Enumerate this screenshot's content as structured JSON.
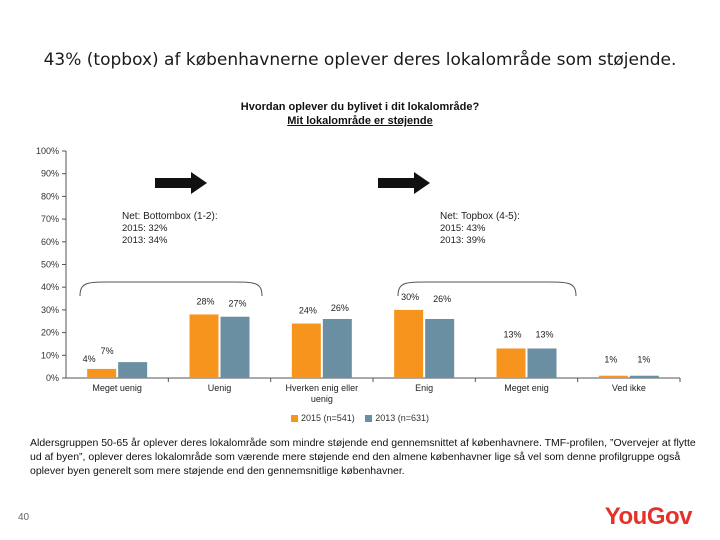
{
  "slide": {
    "headline": "43% (topbox) af københavnerne oplever deres lokalområde som støjende.",
    "notes": "Aldersgruppen 50-65 år oplever deres lokalområde som mindre støjende end gennemsnittet af københavnere. TMF-profilen, ”Overvejer at flytte ud af byen”, oplever deres lokalområde som værende mere støjende end den almene københavner lige så vel som denne profilgruppe også oplever byen generelt som mere støjende end den gennemsnitlige københavner.",
    "page_number": "40",
    "logo": "YouGov"
  },
  "colors": {
    "series_2015": "#F7941D",
    "series_2013": "#6A8FA3",
    "logo": "#E4322B"
  },
  "icons": [
    "arrow-right-icon",
    "arrow-right-icon"
  ],
  "chart_data": {
    "type": "bar",
    "title": "Hvordan oplever du bylivet i dit lokalområde?",
    "subtitle": "Mit lokalområde er støjende",
    "categories": [
      "Meget uenig",
      "Uenig",
      "Hverken enig eller uenig",
      "Enig",
      "Meget enig",
      "Ved ikke"
    ],
    "series": [
      {
        "name": "2015 (n=541)",
        "values": [
          4,
          28,
          24,
          30,
          13,
          1
        ],
        "labels": [
          "4%",
          "28%",
          "24%",
          "30%",
          "13%",
          "1%"
        ]
      },
      {
        "name": "2013 (n=631)",
        "values": [
          7,
          27,
          26,
          26,
          13,
          1
        ],
        "labels": [
          "7%",
          "27%",
          "26%",
          "26%",
          "13%",
          "1%"
        ]
      }
    ],
    "ylim": [
      0,
      100
    ],
    "yticks": [
      "0%",
      "10%",
      "20%",
      "30%",
      "40%",
      "50%",
      "60%",
      "70%",
      "80%",
      "90%",
      "100%"
    ],
    "grid": false,
    "legend": "bottom",
    "annotations": [
      {
        "title": "Net: Bottombox (1-2):",
        "line1": "2015: 32%",
        "line2": "2013: 34%"
      },
      {
        "title": "Net: Topbox (4-5):",
        "line1": "2015: 43%",
        "line2": "2013: 39%"
      }
    ]
  }
}
